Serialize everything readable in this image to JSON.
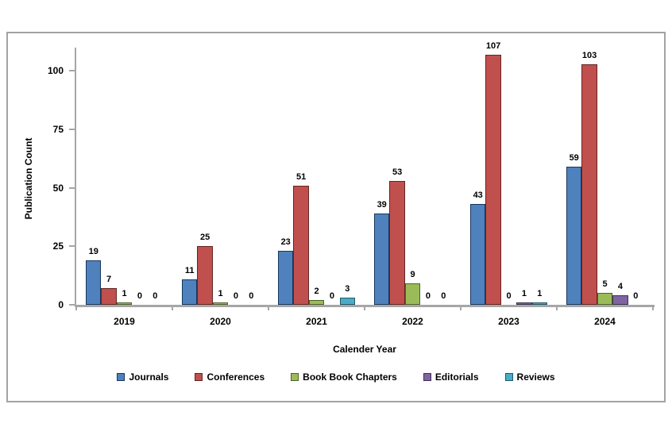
{
  "chart_data": {
    "type": "bar",
    "title": "",
    "xlabel": "Calender Year",
    "ylabel": "Publication Count",
    "categories": [
      "2019",
      "2020",
      "2021",
      "2022",
      "2023",
      "2024"
    ],
    "series": [
      {
        "name": "Journals",
        "color": "#4F81BD",
        "border_color": "#17375E",
        "values": [
          19,
          11,
          23,
          39,
          43,
          59
        ]
      },
      {
        "name": "Conferences",
        "color": "#C0504D",
        "border_color": "#632523",
        "values": [
          7,
          25,
          51,
          53,
          107,
          103
        ]
      },
      {
        "name": "Book Book Chapters",
        "color": "#9BBB59",
        "border_color": "#4F6228",
        "values": [
          1,
          1,
          2,
          9,
          0,
          5
        ]
      },
      {
        "name": "Editorials",
        "color": "#8064A2",
        "border_color": "#3F3151",
        "values": [
          0,
          0,
          0,
          0,
          1,
          4
        ]
      },
      {
        "name": "Reviews",
        "color": "#4BACC6",
        "border_color": "#215968",
        "values": [
          0,
          0,
          3,
          0,
          1,
          0
        ]
      }
    ],
    "ylim": [
      0,
      110
    ],
    "yticks": [
      0,
      25,
      50,
      75,
      100
    ],
    "grid": false,
    "legend_position": "bottom",
    "bar_value_labels": true,
    "axis_color": "#A6A6A6",
    "text_color": "#000000",
    "frame_border_color": "#A3A3A3"
  }
}
